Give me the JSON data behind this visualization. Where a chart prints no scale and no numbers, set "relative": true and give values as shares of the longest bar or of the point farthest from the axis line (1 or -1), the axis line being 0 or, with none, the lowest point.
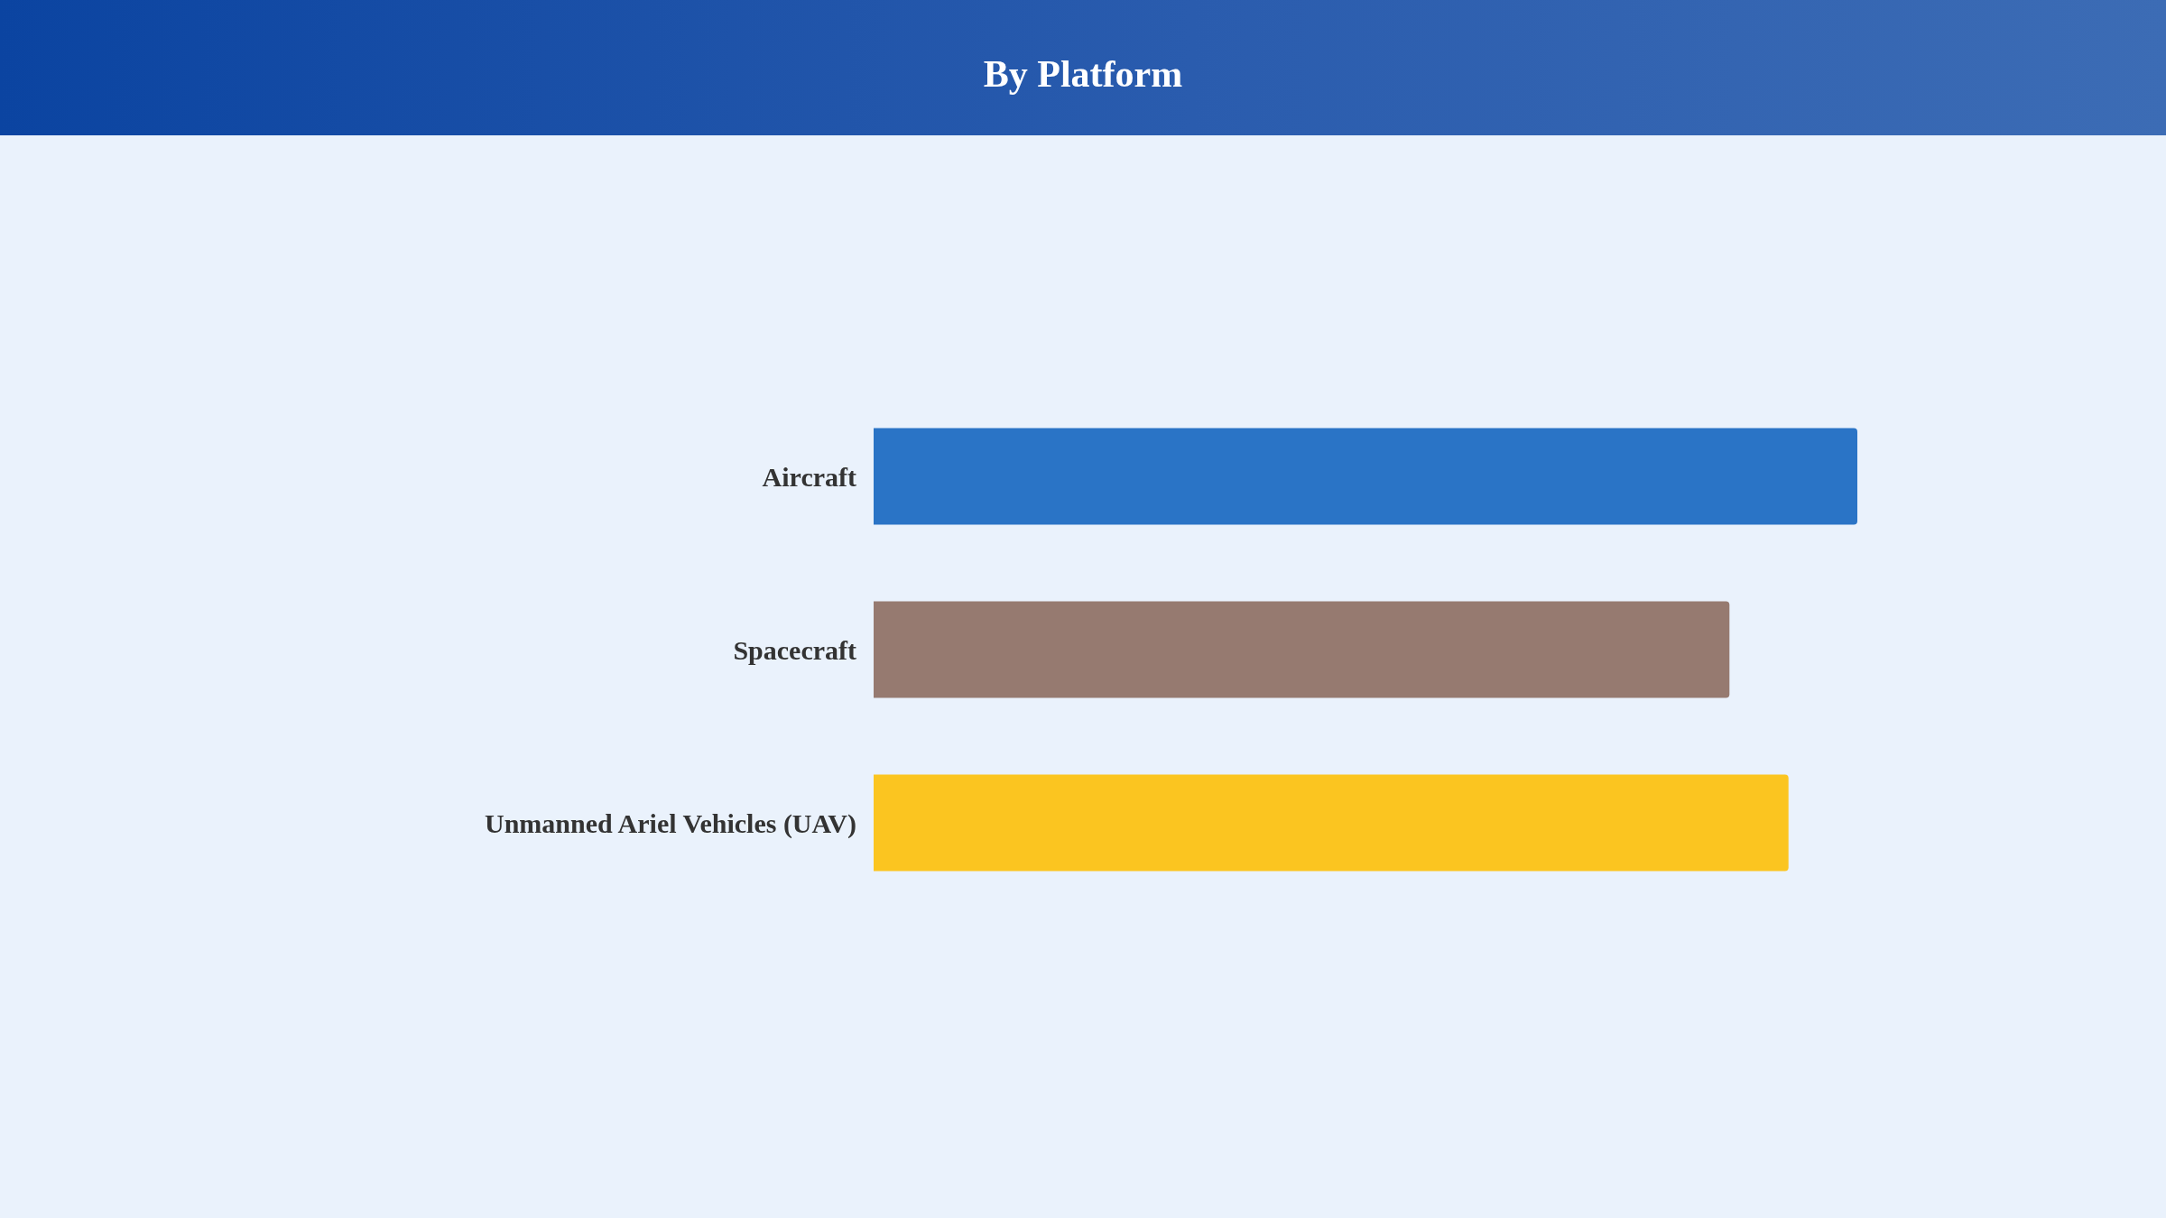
{
  "chart_data": {
    "type": "bar",
    "title": "By Platform",
    "orientation": "horizontal",
    "relative": true,
    "categories": [
      "Aircraft",
      "Spacecraft",
      "Unmanned Ariel Vehicles (UAV)"
    ],
    "values": [
      1,
      0.87,
      0.93
    ],
    "colors": [
      "#2a74c6",
      "#967a70",
      "#fbc520"
    ]
  }
}
